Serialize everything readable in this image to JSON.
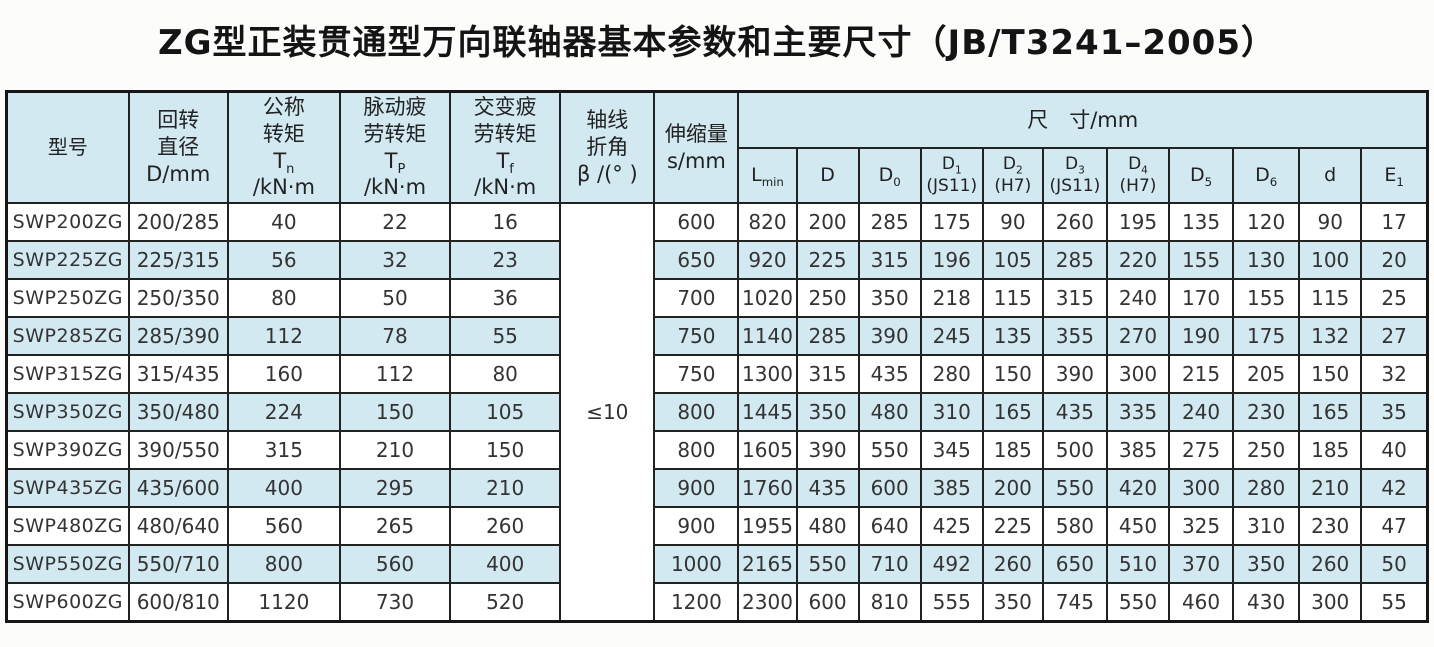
{
  "title": "ZG型正装贯通型万向联轴器基本参数和主要尺寸（JB/T3241–2005）",
  "colors": {
    "row_alt_blue": "#d2e9f1",
    "header_blue": "#d2e9f1",
    "border": "#222222",
    "text": "#333333"
  },
  "table": {
    "header": {
      "model_label": "型号",
      "left_cols": [
        "回转\n直径\nD/mm",
        "公称\n转矩\nT_{n}\n/kN·m",
        "脉动疲\n劳转矩\nT_{P}\n/kN·m",
        "交变疲\n劳转矩\nT_{f}\n/kN·m",
        "轴线\n折角\nβ /(° )",
        "伸缩量\ns/mm"
      ],
      "size_group_label": "尺　寸/mm",
      "size_cols": [
        "L_{min}",
        "D",
        "D_{0}",
        "D_{1}\n(JS11)",
        "D_{2}\n(H7)",
        "D_{3}\n(JS11)",
        "D_{4}\n(H7)",
        "D_{5}",
        "D_{6}",
        "d",
        "E_{1}"
      ]
    },
    "beta_value": "≤10",
    "rows": [
      {
        "model": "SWP200ZG",
        "left": [
          "200/285",
          "40",
          "22",
          "16"
        ],
        "s": "600",
        "dims": [
          "820",
          "200",
          "285",
          "175",
          "90",
          "260",
          "195",
          "135",
          "120",
          "90",
          "17"
        ]
      },
      {
        "model": "SWP225ZG",
        "left": [
          "225/315",
          "56",
          "32",
          "23"
        ],
        "s": "650",
        "dims": [
          "920",
          "225",
          "315",
          "196",
          "105",
          "285",
          "220",
          "155",
          "130",
          "100",
          "20"
        ]
      },
      {
        "model": "SWP250ZG",
        "left": [
          "250/350",
          "80",
          "50",
          "36"
        ],
        "s": "700",
        "dims": [
          "1020",
          "250",
          "350",
          "218",
          "115",
          "315",
          "240",
          "170",
          "155",
          "115",
          "25"
        ]
      },
      {
        "model": "SWP285ZG",
        "left": [
          "285/390",
          "112",
          "78",
          "55"
        ],
        "s": "750",
        "dims": [
          "1140",
          "285",
          "390",
          "245",
          "135",
          "355",
          "270",
          "190",
          "175",
          "132",
          "27"
        ]
      },
      {
        "model": "SWP315ZG",
        "left": [
          "315/435",
          "160",
          "112",
          "80"
        ],
        "s": "750",
        "dims": [
          "1300",
          "315",
          "435",
          "280",
          "150",
          "390",
          "300",
          "215",
          "205",
          "150",
          "32"
        ]
      },
      {
        "model": "SWP350ZG",
        "left": [
          "350/480",
          "224",
          "150",
          "105"
        ],
        "s": "800",
        "dims": [
          "1445",
          "350",
          "480",
          "310",
          "165",
          "435",
          "335",
          "240",
          "230",
          "165",
          "35"
        ]
      },
      {
        "model": "SWP390ZG",
        "left": [
          "390/550",
          "315",
          "210",
          "150"
        ],
        "s": "800",
        "dims": [
          "1605",
          "390",
          "550",
          "345",
          "185",
          "500",
          "385",
          "275",
          "250",
          "185",
          "40"
        ]
      },
      {
        "model": "SWP435ZG",
        "left": [
          "435/600",
          "400",
          "295",
          "210"
        ],
        "s": "900",
        "dims": [
          "1760",
          "435",
          "600",
          "385",
          "200",
          "550",
          "420",
          "300",
          "280",
          "210",
          "42"
        ]
      },
      {
        "model": "SWP480ZG",
        "left": [
          "480/640",
          "560",
          "265",
          "260"
        ],
        "s": "900",
        "dims": [
          "1955",
          "480",
          "640",
          "425",
          "225",
          "580",
          "450",
          "325",
          "310",
          "230",
          "47"
        ]
      },
      {
        "model": "SWP550ZG",
        "left": [
          "550/710",
          "800",
          "560",
          "400"
        ],
        "s": "1000",
        "dims": [
          "2165",
          "550",
          "710",
          "492",
          "260",
          "650",
          "510",
          "370",
          "350",
          "260",
          "50"
        ]
      },
      {
        "model": "SWP600ZG",
        "left": [
          "600/810",
          "1120",
          "730",
          "520"
        ],
        "s": "1200",
        "dims": [
          "2300",
          "600",
          "810",
          "555",
          "350",
          "745",
          "550",
          "460",
          "430",
          "300",
          "55"
        ]
      }
    ]
  }
}
